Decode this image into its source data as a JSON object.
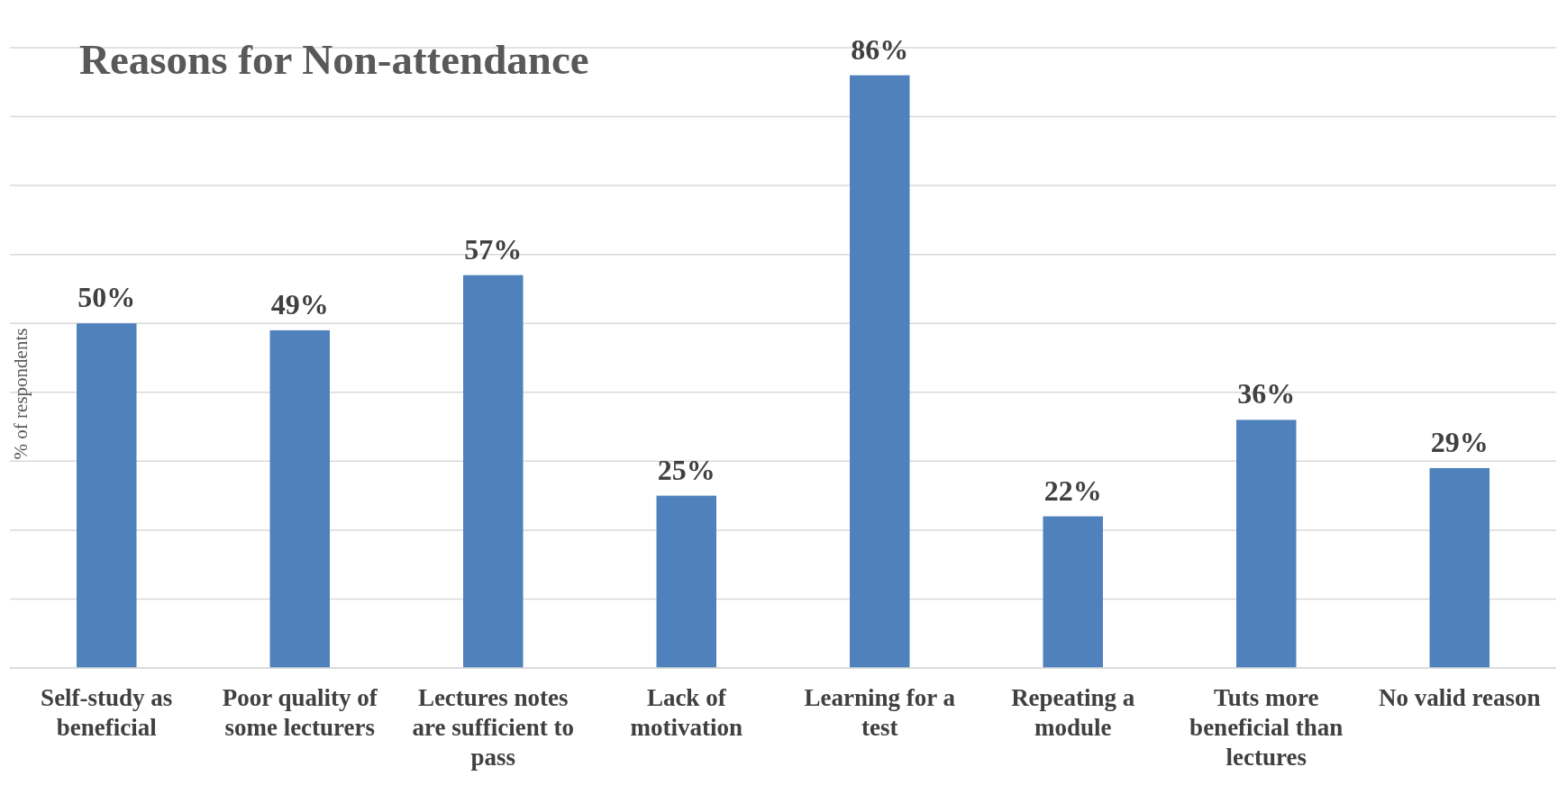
{
  "chart_data": {
    "type": "bar",
    "title": "Reasons for Non-attendance",
    "ylabel": "% of respondents",
    "categories": [
      "Self-study as beneficial",
      "Poor quality of some lecturers",
      "Lectures notes are sufficient to pass",
      "Lack of motivation",
      "Learning for a test",
      "Repeating a module",
      "Tuts more beneficial than lectures",
      "No valid reason"
    ],
    "values": [
      50,
      49,
      57,
      25,
      86,
      22,
      36,
      29
    ],
    "value_labels": [
      "50%",
      "49%",
      "57%",
      "25%",
      "86%",
      "22%",
      "36%",
      "29%"
    ],
    "color": "#4f81bd",
    "ylim": [
      0,
      90
    ],
    "yticks": [
      {
        "value": 0,
        "label": null
      },
      {
        "value": 10,
        "label": null
      },
      {
        "value": 20,
        "label": null
      },
      {
        "value": 30,
        "label": null
      },
      {
        "value": 40,
        "label": null
      },
      {
        "value": 50,
        "label": null
      },
      {
        "value": 60,
        "label": null
      },
      {
        "value": 70,
        "label": null
      },
      {
        "value": 80,
        "label": null
      },
      {
        "value": 90,
        "label": null
      }
    ],
    "tick_labels": "x",
    "grid": "y"
  }
}
